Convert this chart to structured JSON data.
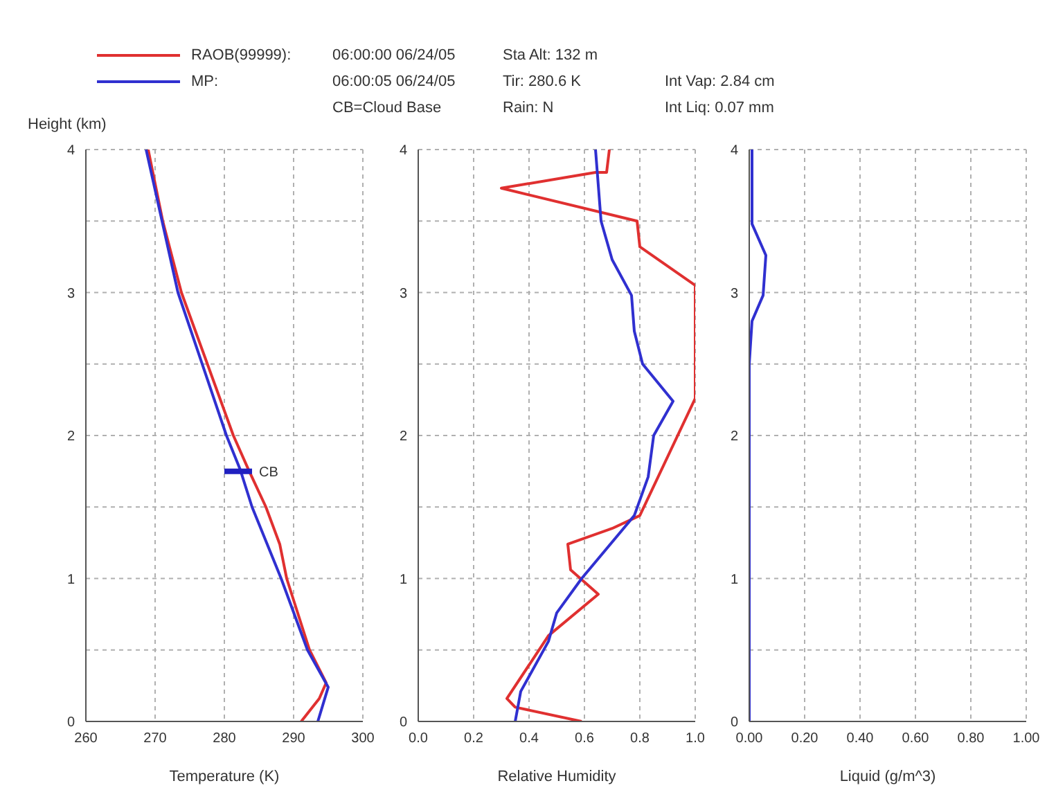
{
  "chart_data": [
    {
      "type": "line",
      "xlabel": "Temperature (K)",
      "ylabel": "Height (km)",
      "legend": "top",
      "grid": true,
      "xlim": [
        260,
        300
      ],
      "ylim": [
        0,
        4
      ],
      "xticks": [
        260,
        270,
        280,
        290,
        300
      ],
      "yticks": [
        0,
        {
          "value": 0.5,
          "label": null
        },
        1,
        {
          "value": 1.5,
          "label": null
        },
        2,
        {
          "value": 2.5,
          "label": null
        },
        3,
        {
          "value": 3.5,
          "label": null
        },
        4
      ],
      "annotations": [
        "06:00:00 06/24/05",
        "06:00:05 06/24/05",
        "CB=Cloud Base",
        "Sta Alt: 132 m",
        "Tir: 280.6 K",
        "Rain: N",
        "Int Vap: 2.84 cm",
        "Int Liq: 0.07 mm",
        {
          "text": "CB",
          "x": 284,
          "y": 1.75
        }
      ],
      "series": [
        {
          "name": "RAOB(99999):",
          "color": "#e03030",
          "x": [
            291.1,
            293.7,
            294.7,
            292.3,
            289,
            288,
            286,
            283.5,
            281.3,
            273.8,
            271.1,
            269
          ],
          "values": [
            0,
            0.16,
            0.27,
            0.5,
            1,
            1.24,
            1.5,
            1.76,
            2,
            3,
            3.5,
            4
          ]
        },
        {
          "name": "MP:",
          "color": "#3030d0",
          "x": [
            293.5,
            295,
            292,
            288.2,
            284,
            282.3,
            280.3,
            273.3,
            268.7
          ],
          "values": [
            0,
            0.24,
            0.5,
            1,
            1.5,
            1.76,
            2,
            3,
            4
          ]
        },
        {
          "color": "#2020c0",
          "x": [
            280,
            284
          ],
          "values": [
            1.75,
            1.75
          ]
        }
      ]
    },
    {
      "type": "line",
      "xlabel": "Relative Humidity",
      "grid": true,
      "xlim": [
        0,
        1
      ],
      "ylim": [
        0,
        4
      ],
      "xticks": [
        {
          "value": 0,
          "label": "0.0"
        },
        {
          "value": 0.2,
          "label": "0.2"
        },
        {
          "value": 0.4,
          "label": "0.4"
        },
        {
          "value": 0.6,
          "label": "0.6"
        },
        {
          "value": 0.8,
          "label": "0.8"
        },
        {
          "value": 1,
          "label": "1.0"
        }
      ],
      "yticks": [
        0,
        {
          "value": 0.5,
          "label": null
        },
        1,
        {
          "value": 1.5,
          "label": null
        },
        2,
        {
          "value": 2.5,
          "label": null
        },
        3,
        {
          "value": 3.5,
          "label": null
        },
        4
      ],
      "series": [
        {
          "color": "#e03030",
          "x": [
            0.59,
            0.35,
            0.32,
            0.47,
            0.65,
            0.55,
            0.54,
            0.7,
            0.8,
            1.0,
            1.0,
            0.8,
            0.79,
            0.3,
            0.64,
            0.68,
            0.69
          ],
          "values": [
            0,
            0.1,
            0.16,
            0.6,
            0.89,
            1.06,
            1.24,
            1.35,
            1.44,
            2.26,
            3.05,
            3.32,
            3.5,
            3.73,
            3.84,
            3.84,
            4
          ]
        },
        {
          "color": "#3030d0",
          "x": [
            0.35,
            0.37,
            0.47,
            0.5,
            0.59,
            0.78,
            0.83,
            0.85,
            0.92,
            0.81,
            0.78,
            0.77,
            0.7,
            0.66,
            0.64
          ],
          "values": [
            0,
            0.21,
            0.56,
            0.76,
            1,
            1.44,
            1.71,
            2,
            2.24,
            2.5,
            2.73,
            2.98,
            3.23,
            3.5,
            4
          ]
        }
      ]
    },
    {
      "type": "line",
      "xlabel": "Liquid (g/m^3)",
      "grid": true,
      "xlim": [
        0,
        1
      ],
      "ylim": [
        0,
        4
      ],
      "xticks": [
        {
          "value": 0,
          "label": "0.00"
        },
        {
          "value": 0.2,
          "label": "0.20"
        },
        {
          "value": 0.4,
          "label": "0.40"
        },
        {
          "value": 0.6,
          "label": "0.60"
        },
        {
          "value": 0.8,
          "label": "0.80"
        },
        {
          "value": 1,
          "label": "1.00"
        }
      ],
      "yticks": [
        0,
        {
          "value": 0.5,
          "label": null
        },
        1,
        {
          "value": 1.5,
          "label": null
        },
        2,
        {
          "value": 2.5,
          "label": null
        },
        3,
        {
          "value": 3.5,
          "label": null
        },
        4
      ],
      "series": [
        {
          "color": "#3030d0",
          "x": [
            0,
            0,
            0.01,
            0.05,
            0.06,
            0.01,
            0.01
          ],
          "values": [
            0,
            2.5,
            2.8,
            2.98,
            3.26,
            3.48,
            4
          ]
        }
      ]
    }
  ]
}
